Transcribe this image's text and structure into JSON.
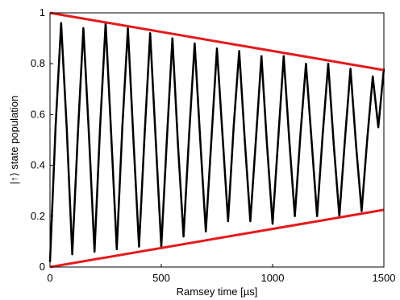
{
  "chart_data": {
    "type": "line",
    "xlabel": "Ramsey time [µs]",
    "ylabel": "|↑⟩ state population",
    "xlim": [
      0,
      1500
    ],
    "ylim": [
      0,
      1
    ],
    "xticks": [
      "0",
      "500",
      "1000",
      "1500"
    ],
    "yticks": [
      "0",
      "0.2",
      "0.4",
      "0.6",
      "0.8",
      "1"
    ],
    "grid": false,
    "series": [
      {
        "color": "#000000",
        "x": [
          0,
          25,
          50,
          75,
          100,
          125,
          150,
          175,
          200,
          225,
          250,
          275,
          300,
          325,
          350,
          375,
          400,
          425,
          450,
          475,
          500,
          525,
          550,
          575,
          600,
          625,
          650,
          675,
          700,
          725,
          750,
          775,
          800,
          825,
          850,
          875,
          900,
          925,
          950,
          975,
          1000,
          1025,
          1050,
          1075,
          1100,
          1125,
          1150,
          1175,
          1200,
          1225,
          1250,
          1275,
          1300,
          1325,
          1350,
          1375,
          1400,
          1425,
          1450,
          1475,
          1500
        ],
        "values": [
          0.02,
          0.55,
          0.96,
          0.55,
          0.05,
          0.52,
          0.94,
          0.52,
          0.06,
          0.55,
          0.96,
          0.52,
          0.07,
          0.55,
          0.94,
          0.5,
          0.08,
          0.52,
          0.92,
          0.5,
          0.08,
          0.5,
          0.9,
          0.48,
          0.12,
          0.52,
          0.88,
          0.5,
          0.14,
          0.5,
          0.86,
          0.52,
          0.18,
          0.55,
          0.85,
          0.5,
          0.18,
          0.5,
          0.83,
          0.48,
          0.17,
          0.5,
          0.83,
          0.5,
          0.2,
          0.52,
          0.8,
          0.5,
          0.2,
          0.52,
          0.8,
          0.48,
          0.2,
          0.5,
          0.78,
          0.48,
          0.22,
          0.5,
          0.75,
          0.55,
          0.78
        ]
      },
      {
        "color": "#e41a1c",
        "x": [
          0,
          1500
        ],
        "values": [
          1.0,
          0.775
        ]
      },
      {
        "color": "#e41a1c",
        "x": [
          0,
          1500
        ],
        "values": [
          0.0,
          0.225
        ]
      }
    ]
  }
}
